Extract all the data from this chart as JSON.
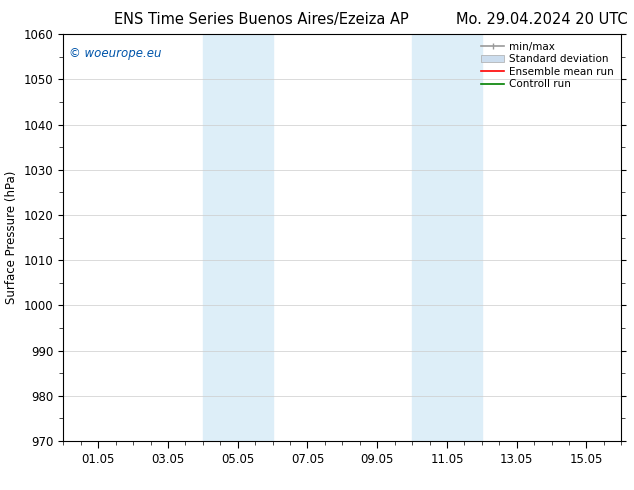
{
  "title_left": "ENS Time Series Buenos Aires/Ezeiza AP",
  "title_right": "Mo. 29.04.2024 20 UTC",
  "ylabel": "Surface Pressure (hPa)",
  "ylim": [
    970,
    1060
  ],
  "yticks": [
    970,
    980,
    990,
    1000,
    1010,
    1020,
    1030,
    1040,
    1050,
    1060
  ],
  "xtick_labels": [
    "01.05",
    "03.05",
    "05.05",
    "07.05",
    "09.05",
    "11.05",
    "13.05",
    "15.05"
  ],
  "xtick_positions": [
    2,
    6,
    10,
    14,
    18,
    22,
    26,
    30
  ],
  "x_minor_positions_per_day": 4,
  "xlim": [
    0,
    32
  ],
  "shaded_bands": [
    {
      "x_start": 8,
      "x_end": 12,
      "color": "#ddeef8"
    },
    {
      "x_start": 20,
      "x_end": 24,
      "color": "#ddeef8"
    }
  ],
  "watermark_text": "© woeurope.eu",
  "watermark_color": "#0055aa",
  "bg_color": "#ffffff",
  "grid_color": "#cccccc",
  "title_fontsize": 10.5,
  "axis_label_fontsize": 8.5,
  "tick_label_fontsize": 8.5
}
